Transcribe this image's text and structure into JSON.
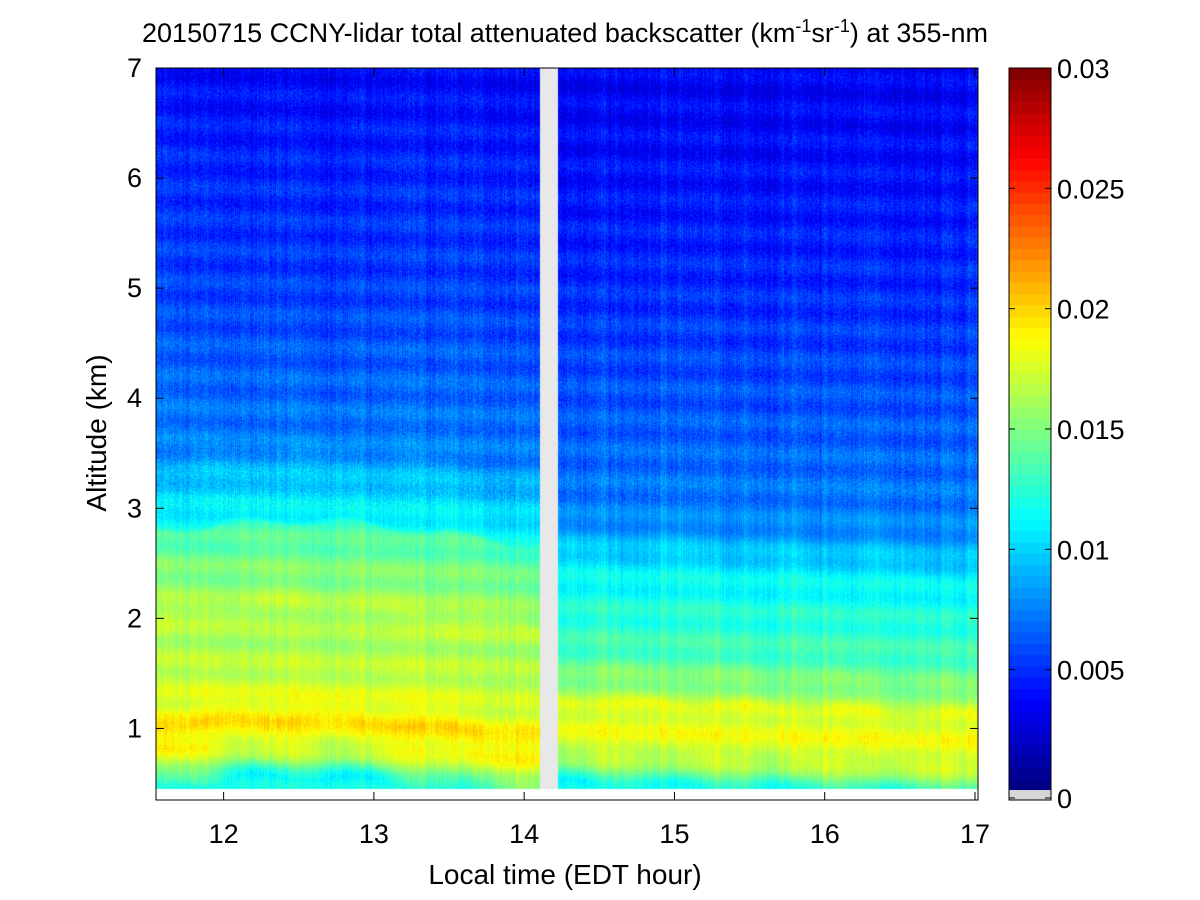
{
  "chart_data": {
    "type": "heatmap",
    "title": {
      "prefix": "20150715 CCNY-lidar total attenuated backscatter (km",
      "sup1": "-1",
      "mid": "sr",
      "sup2": "-1",
      "suffix": ") at 355-nm"
    },
    "xlabel": "Local time (EDT hour)",
    "ylabel": "Altitude (km)",
    "xlim": [
      11.55,
      17.02
    ],
    "ylim": [
      0.35,
      7.0
    ],
    "x_ticks": [
      12,
      13,
      14,
      15,
      16,
      17
    ],
    "y_ticks": [
      1,
      2,
      3,
      4,
      5,
      6,
      7
    ],
    "x_tick_labels": [
      "12",
      "13",
      "14",
      "15",
      "16",
      "17"
    ],
    "y_tick_labels": [
      "1",
      "2",
      "3",
      "4",
      "5",
      "6",
      "7"
    ],
    "data_range_km": [
      0.45,
      7.0
    ],
    "data_gaps_hours": [
      [
        14.1,
        14.22
      ]
    ],
    "colormap": "jet",
    "colorbar": {
      "min": 0,
      "max": 0.03,
      "ticks": [
        0,
        0.005,
        0.01,
        0.015,
        0.02,
        0.025,
        0.03
      ],
      "tick_labels": [
        "0",
        "0.005",
        "0.01",
        "0.015",
        "0.02",
        "0.025",
        "0.03"
      ],
      "nodata_color": "#d6d6d6"
    },
    "profile_before_gap": {
      "description_altitudes_km": [
        0.45,
        0.6,
        0.8,
        1.0,
        1.2,
        1.4,
        1.6,
        1.8,
        2.0,
        2.2,
        2.5,
        2.75,
        2.8,
        3.0,
        3.3,
        3.5,
        4.0,
        5.0,
        6.0,
        7.0
      ],
      "values": [
        0.0115,
        0.0155,
        0.0185,
        0.0195,
        0.0178,
        0.017,
        0.0165,
        0.0162,
        0.0168,
        0.0155,
        0.0145,
        0.0132,
        0.0115,
        0.0105,
        0.009,
        0.0075,
        0.0068,
        0.0055,
        0.0048,
        0.0038
      ]
    },
    "profile_after_gap": {
      "description_altitudes_km": [
        0.45,
        0.6,
        0.8,
        1.0,
        1.2,
        1.3,
        1.45,
        1.6,
        1.8,
        2.0,
        2.2,
        2.4,
        2.6,
        2.8,
        3.0,
        3.5,
        4.0,
        5.0,
        6.0,
        7.0
      ],
      "values": [
        0.0118,
        0.015,
        0.0178,
        0.0182,
        0.0178,
        0.016,
        0.0152,
        0.0138,
        0.013,
        0.0125,
        0.0118,
        0.0112,
        0.0098,
        0.0082,
        0.0075,
        0.0068,
        0.0062,
        0.005,
        0.0042,
        0.0035
      ]
    },
    "colors": {
      "background": "#ffffff",
      "axis": "#000000",
      "gap": "#e8e8e8",
      "baseline": "#f2f2f2"
    }
  }
}
